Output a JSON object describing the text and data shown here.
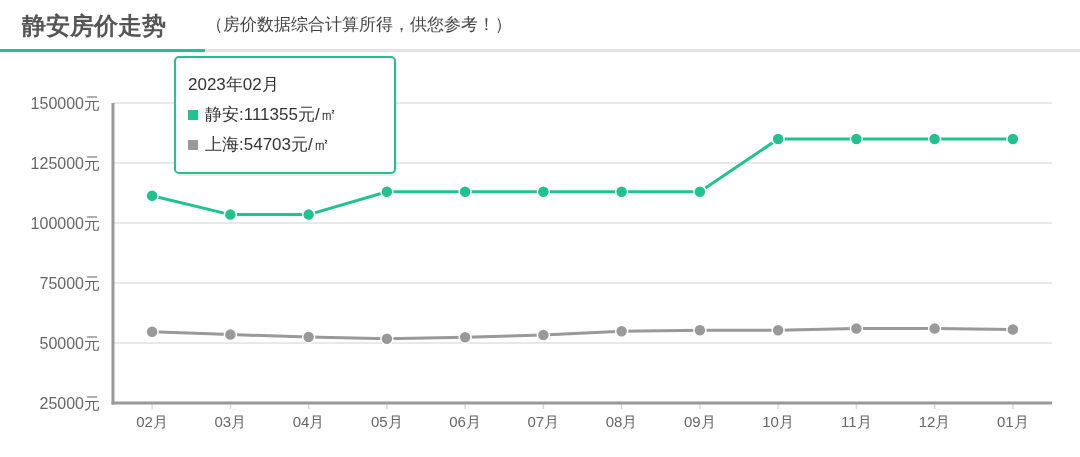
{
  "chart_data": {
    "type": "line",
    "title": "静安房价走势",
    "subtitle": "（房价数据综合计算所得，供您参考！）",
    "categories": [
      "02月",
      "03月",
      "04月",
      "05月",
      "06月",
      "07月",
      "08月",
      "09月",
      "10月",
      "11月",
      "12月",
      "01月"
    ],
    "series": [
      {
        "color": "#20c38e",
        "values": [
          111355,
          103500,
          103500,
          113000,
          113000,
          113000,
          113000,
          113000,
          135000,
          135000,
          135000,
          135000
        ]
      },
      {
        "color": "#999999",
        "values": [
          54703,
          53500,
          52500,
          51800,
          52400,
          53300,
          54900,
          55300,
          55300,
          56000,
          56000,
          55600
        ]
      }
    ],
    "ylim": [
      25000,
      150000
    ],
    "yticks": [
      {
        "value": 25000,
        "label": "25000元"
      },
      {
        "value": 50000,
        "label": "50000元"
      },
      {
        "value": 75000,
        "label": "75000元"
      },
      {
        "value": 100000,
        "label": "100000元"
      },
      {
        "value": 125000,
        "label": "125000元"
      },
      {
        "value": 150000,
        "label": "150000元"
      }
    ],
    "grid": "y",
    "marker": "circle",
    "line_style": "solid",
    "annotations": [
      "2023年02月",
      "静安:111355元/㎡",
      "上海:54703元/㎡"
    ]
  }
}
